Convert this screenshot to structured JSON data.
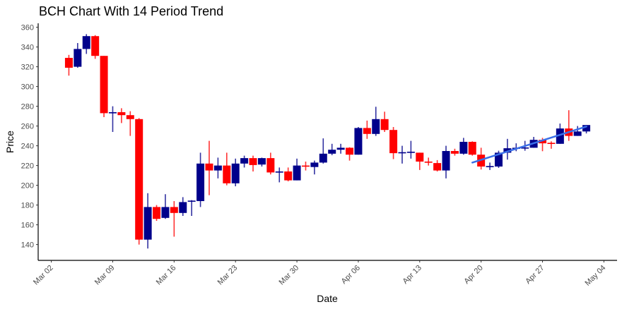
{
  "chart_data": {
    "type": "candlestick",
    "title": "BCH Chart With 14 Period Trend",
    "xlabel": "Date",
    "ylabel": "Price",
    "ylim": [
      124,
      364
    ],
    "xlim": [
      "Feb 29",
      "May 05"
    ],
    "grid": false,
    "yticks": [
      140,
      160,
      180,
      200,
      220,
      240,
      260,
      280,
      300,
      320,
      340,
      360
    ],
    "xticks": [
      "Mar 02",
      "Mar 09",
      "Mar 16",
      "Mar 23",
      "Mar 30",
      "Apr 06",
      "Apr 13",
      "Apr 20",
      "Apr 27",
      "May 04"
    ],
    "colors": {
      "up": "#00008B",
      "down": "#FF0000",
      "trend": "#3A6FE8"
    },
    "columns": [
      "date",
      "open",
      "high",
      "low",
      "close"
    ],
    "candles": [
      [
        "Mar 04",
        329,
        332,
        311,
        319
      ],
      [
        "Mar 05",
        320,
        344,
        319,
        338
      ],
      [
        "Mar 06",
        338,
        353,
        333,
        351
      ],
      [
        "Mar 07",
        351,
        352,
        328,
        331
      ],
      [
        "Mar 08",
        331,
        331,
        269,
        273
      ],
      [
        "Mar 09",
        273,
        280,
        254,
        274
      ],
      [
        "Mar 10",
        274,
        278,
        263,
        271
      ],
      [
        "Mar 11",
        271,
        275,
        250,
        267
      ],
      [
        "Mar 12",
        267,
        268,
        140,
        145
      ],
      [
        "Mar 13",
        145,
        192,
        136,
        178
      ],
      [
        "Mar 14",
        178,
        180,
        164,
        166
      ],
      [
        "Mar 15",
        167,
        191,
        166,
        178
      ],
      [
        "Mar 16",
        178,
        184,
        148,
        172
      ],
      [
        "Mar 17",
        172,
        188,
        169,
        183
      ],
      [
        "Mar 18",
        183.5,
        185,
        169,
        184.5
      ],
      [
        "Mar 19",
        184,
        233,
        178,
        222
      ],
      [
        "Mar 20",
        222,
        245,
        190,
        215
      ],
      [
        "Mar 21",
        215,
        228,
        207,
        220
      ],
      [
        "Mar 22",
        220,
        233,
        200,
        202
      ],
      [
        "Mar 23",
        202,
        227,
        199,
        222
      ],
      [
        "Mar 24",
        222,
        230,
        218,
        227.5
      ],
      [
        "Mar 25",
        227.5,
        230,
        214,
        220.5
      ],
      [
        "Mar 26",
        221,
        228,
        219,
        227.5
      ],
      [
        "Mar 27",
        227.5,
        233,
        211,
        213
      ],
      [
        "Mar 28",
        213,
        218,
        203,
        214
      ],
      [
        "Mar 29",
        214,
        218,
        204,
        205
      ],
      [
        "Mar 30",
        205,
        227,
        205,
        220
      ],
      [
        "Mar 31",
        220,
        224,
        215,
        219
      ],
      [
        "Apr 01",
        218.5,
        225,
        211,
        223
      ],
      [
        "Apr 02",
        223,
        247.5,
        222,
        232
      ],
      [
        "Apr 03",
        232,
        242,
        230.5,
        236
      ],
      [
        "Apr 04",
        236,
        242,
        232,
        238
      ],
      [
        "Apr 05",
        238,
        238.5,
        225,
        231
      ],
      [
        "Apr 06",
        231,
        259,
        231,
        258
      ],
      [
        "Apr 07",
        258,
        265.5,
        247,
        252
      ],
      [
        "Apr 08",
        252,
        279.5,
        250,
        267
      ],
      [
        "Apr 09",
        267,
        274.5,
        254,
        256
      ],
      [
        "Apr 10",
        256,
        259,
        226.5,
        232.5
      ],
      [
        "Apr 11",
        233,
        240,
        222,
        233.5
      ],
      [
        "Apr 12",
        233.5,
        245,
        227,
        234
      ],
      [
        "Apr 13",
        233,
        233,
        215.5,
        224
      ],
      [
        "Apr 14",
        224,
        228,
        220,
        223
      ],
      [
        "Apr 15",
        222.5,
        225.5,
        214,
        215
      ],
      [
        "Apr 16",
        215,
        240,
        207,
        234.7
      ],
      [
        "Apr 17",
        234.7,
        237,
        230,
        232
      ],
      [
        "Apr 18",
        232,
        248,
        231,
        244
      ],
      [
        "Apr 19",
        244,
        244.5,
        230,
        231
      ],
      [
        "Apr 20",
        231,
        238,
        216,
        219
      ],
      [
        "Apr 21",
        219,
        223,
        215.5,
        219.5
      ],
      [
        "Apr 22",
        219,
        235,
        217.6,
        233
      ],
      [
        "Apr 23",
        233,
        247,
        226,
        237.5
      ],
      [
        "Apr 24",
        237.5,
        242.5,
        234.5,
        238
      ],
      [
        "Apr 25",
        237.7,
        245,
        235,
        238.3
      ],
      [
        "Apr 26",
        238,
        249,
        238,
        246
      ],
      [
        "Apr 27",
        246,
        248,
        234.5,
        242.5
      ],
      [
        "Apr 28",
        243,
        244.5,
        237,
        242.5
      ],
      [
        "Apr 29",
        242,
        262.5,
        242,
        257.5
      ],
      [
        "Apr 30",
        257.5,
        276,
        245,
        250
      ],
      [
        "May 01",
        250,
        260,
        250,
        254.5
      ],
      [
        "May 02",
        254.5,
        261,
        252.5,
        261
      ]
    ],
    "trend": {
      "period": 14,
      "start": [
        "Apr 19",
        223
      ],
      "end": [
        "May 02",
        259.5
      ]
    }
  }
}
